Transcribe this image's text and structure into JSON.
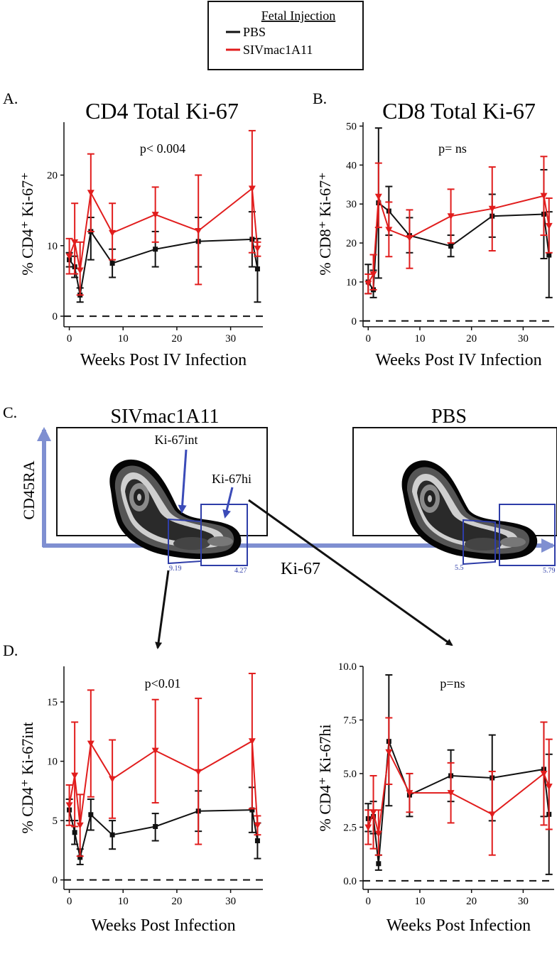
{
  "legend": {
    "title": "Fetal Injection",
    "items": [
      {
        "label": "PBS",
        "color": "#111111"
      },
      {
        "label": "SIVmac1A11",
        "color": "#e11d1d"
      }
    ]
  },
  "colors": {
    "pbs": "#111111",
    "siv": "#e11d1d",
    "flow_axis": "#7f8fd1",
    "gate": "#2e3da8"
  },
  "panels": {
    "a_letter": "A.",
    "b_letter": "B.",
    "c_letter": "C.",
    "d_letter": "D."
  },
  "flow": {
    "left_title": "SIVmac1A11",
    "right_title": "PBS",
    "y_label": "CD45RA",
    "x_label": "Ki-67",
    "left_int_label": "Ki-67int",
    "left_hi_label": "Ki-67hi",
    "left_int_value": "9.19",
    "left_hi_value": "4.27",
    "right_int_value": "5.5",
    "right_hi_value": "5.79"
  },
  "chart_data": [
    {
      "id": "A",
      "type": "line",
      "title": "CD4 Total Ki-67",
      "annotation": "p< 0.004",
      "xlabel": "Weeks Post IV Infection",
      "ylabel": "% CD4⁺ Ki-67⁺",
      "xlim": [
        -1,
        36
      ],
      "ylim": [
        -1.5,
        27.5
      ],
      "xticks": [
        0,
        10,
        20,
        30
      ],
      "yticks": [
        0,
        10,
        20
      ],
      "ytick_labels": [
        "0",
        "10",
        "20"
      ],
      "dashed_zero": true,
      "series": [
        {
          "name": "PBS",
          "x": [
            0,
            1,
            2,
            4,
            8,
            16,
            24,
            34,
            35
          ],
          "y": [
            8.0,
            7.0,
            3.0,
            12.0,
            7.5,
            9.5,
            10.6,
            10.9,
            6.7
          ],
          "lo": [
            7.0,
            5.5,
            2.0,
            8.0,
            5.5,
            7.0,
            7.0,
            7.0,
            2.0
          ],
          "hi": [
            9.0,
            8.5,
            4.0,
            14.0,
            9.5,
            12.0,
            14.0,
            14.8,
            11.0
          ]
        },
        {
          "name": "SIVmac1A11",
          "x": [
            0,
            1,
            2,
            4,
            8,
            16,
            24,
            34,
            35
          ],
          "y": [
            8.5,
            10.5,
            6.5,
            17.5,
            11.8,
            14.4,
            12.1,
            18.1,
            9.6
          ],
          "lo": [
            6.0,
            6.0,
            3.0,
            12.0,
            8.0,
            10.5,
            4.5,
            9.0,
            8.5
          ],
          "hi": [
            11.0,
            16.0,
            10.5,
            23.0,
            16.0,
            18.3,
            20.0,
            26.3,
            10.5
          ]
        }
      ]
    },
    {
      "id": "B",
      "type": "line",
      "title": "CD8 Total Ki-67",
      "annotation": "p= ns",
      "xlabel": "Weeks Post IV Infection",
      "ylabel": "% CD8⁺ Ki-67⁺",
      "xlim": [
        -1,
        36
      ],
      "ylim": [
        -1.5,
        51
      ],
      "xticks": [
        0,
        10,
        20,
        30
      ],
      "yticks": [
        0,
        10,
        20,
        30,
        40,
        50
      ],
      "ytick_labels": [
        "0",
        "10",
        "20",
        "30",
        "40",
        "50"
      ],
      "dashed_zero": true,
      "series": [
        {
          "name": "PBS",
          "x": [
            0,
            1,
            2,
            4,
            8,
            16,
            24,
            34,
            35
          ],
          "y": [
            10.0,
            8.0,
            30.3,
            28.2,
            21.9,
            19.2,
            26.9,
            27.4,
            16.9
          ],
          "lo": [
            7.0,
            6.0,
            11.0,
            22.0,
            17.5,
            16.5,
            21.5,
            16.0,
            6.0
          ],
          "hi": [
            14.5,
            13.0,
            49.5,
            34.5,
            26.5,
            22.0,
            32.5,
            38.8,
            28.0
          ]
        },
        {
          "name": "SIVmac1A11",
          "x": [
            0,
            1,
            2,
            4,
            8,
            16,
            24,
            34,
            35
          ],
          "y": [
            9.6,
            12.0,
            31.9,
            23.4,
            21.3,
            26.9,
            28.8,
            32.1,
            24.4
          ],
          "lo": [
            7.0,
            8.0,
            24.0,
            16.5,
            13.5,
            20.0,
            18.0,
            22.0,
            17.5
          ],
          "hi": [
            12.0,
            17.0,
            40.5,
            30.5,
            28.5,
            33.8,
            39.5,
            42.2,
            31.5
          ]
        }
      ]
    },
    {
      "id": "D1",
      "type": "line",
      "title": "",
      "annotation": "p<0.01",
      "xlabel": "Weeks Post Infection",
      "ylabel": "% CD4⁺ Ki-67int",
      "xlim": [
        -1,
        36
      ],
      "ylim": [
        -0.8,
        18
      ],
      "xticks": [
        0,
        10,
        20,
        30
      ],
      "yticks": [
        0,
        5,
        10,
        15
      ],
      "ytick_labels": [
        "0",
        "5",
        "10",
        "15"
      ],
      "dashed_zero": true,
      "series": [
        {
          "name": "PBS",
          "x": [
            0,
            1,
            2,
            4,
            8,
            16,
            24,
            34,
            35
          ],
          "y": [
            5.9,
            4.0,
            1.9,
            5.5,
            3.8,
            4.5,
            5.8,
            5.9,
            3.3
          ],
          "lo": [
            5.0,
            3.0,
            1.3,
            4.2,
            2.6,
            3.3,
            4.1,
            4.0,
            1.8
          ],
          "hi": [
            6.8,
            5.0,
            2.6,
            6.8,
            5.0,
            5.6,
            7.5,
            7.8,
            4.8
          ]
        },
        {
          "name": "SIVmac1A11",
          "x": [
            0,
            1,
            2,
            4,
            8,
            16,
            24,
            34,
            35
          ],
          "y": [
            6.3,
            8.8,
            4.6,
            11.5,
            8.5,
            10.9,
            9.1,
            11.7,
            4.6
          ],
          "lo": [
            4.6,
            4.5,
            2.0,
            7.0,
            5.2,
            6.5,
            3.0,
            6.0,
            3.8
          ],
          "hi": [
            8.0,
            13.3,
            7.2,
            16.0,
            11.8,
            15.2,
            15.3,
            17.4,
            5.4
          ]
        }
      ]
    },
    {
      "id": "D2",
      "type": "line",
      "title": "",
      "annotation": "p=ns",
      "xlabel": "Weeks Post Infection",
      "ylabel": "% CD4⁺ Ki-67hi",
      "xlim": [
        -1,
        36
      ],
      "ylim": [
        -0.4,
        10.0
      ],
      "xticks": [
        0,
        10,
        20,
        30
      ],
      "yticks": [
        0.0,
        2.5,
        5.0,
        7.5,
        10.0
      ],
      "ytick_labels": [
        "0.0",
        "2.5",
        "5.0",
        "7.5",
        "10.0"
      ],
      "dashed_zero": true,
      "series": [
        {
          "name": "PBS",
          "x": [
            0,
            1,
            2,
            4,
            8,
            16,
            24,
            34,
            35
          ],
          "y": [
            2.9,
            3.0,
            0.8,
            6.5,
            4.0,
            4.9,
            4.8,
            5.2,
            3.1
          ],
          "lo": [
            2.3,
            2.2,
            0.5,
            3.5,
            3.0,
            3.7,
            2.8,
            3.0,
            0.3
          ],
          "hi": [
            3.6,
            3.7,
            1.2,
            9.6,
            5.0,
            6.1,
            6.8,
            7.4,
            5.9
          ]
        },
        {
          "name": "SIVmac1A11",
          "x": [
            0,
            1,
            2,
            4,
            8,
            16,
            24,
            34,
            35
          ],
          "y": [
            2.5,
            3.2,
            2.2,
            6.0,
            4.1,
            4.1,
            3.1,
            5.0,
            4.4
          ],
          "lo": [
            1.7,
            1.5,
            1.2,
            4.5,
            3.2,
            2.7,
            1.2,
            2.6,
            2.4
          ],
          "hi": [
            3.3,
            4.9,
            3.3,
            7.6,
            5.0,
            5.5,
            5.1,
            7.4,
            6.6
          ]
        }
      ]
    }
  ]
}
